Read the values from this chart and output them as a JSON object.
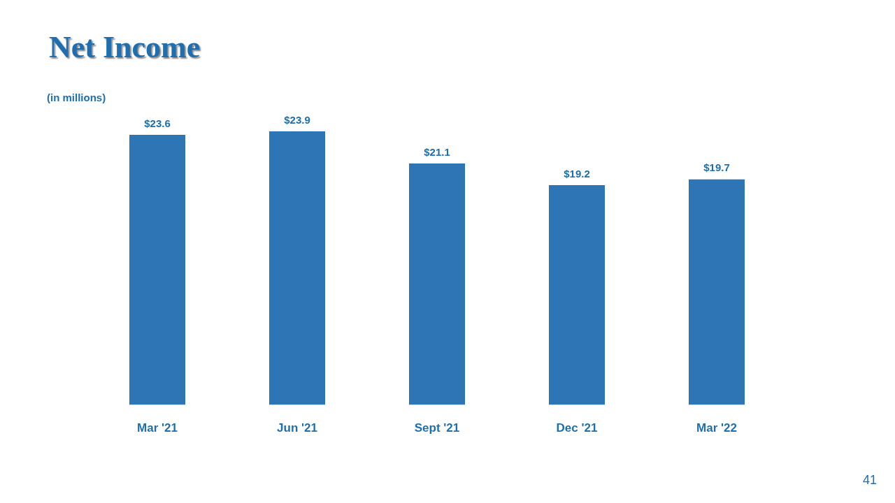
{
  "chart_data": {
    "type": "bar",
    "title": "Net Income",
    "subtitle": "(in millions)",
    "categories": [
      "Mar '21",
      "Jun '21",
      "Sept '21",
      "Dec '21",
      "Mar '22"
    ],
    "values": [
      23.6,
      23.9,
      21.1,
      19.2,
      19.7
    ],
    "value_labels": [
      "$23.6",
      "$23.9",
      "$21.1",
      "$19.2",
      "$19.7"
    ],
    "color": "#2e75b6",
    "annotations": [
      "41"
    ]
  }
}
